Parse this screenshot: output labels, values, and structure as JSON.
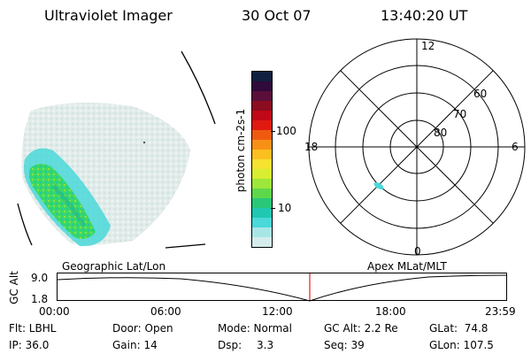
{
  "header": {
    "instrument": "Ultraviolet Imager",
    "date": "30 Oct 07",
    "time": "13:40:20 UT"
  },
  "colorbar": {
    "label": "photon cm-2s-1",
    "ticks": [
      "100",
      "10"
    ],
    "colors": [
      "#102040",
      "#300a3a",
      "#5a0e3a",
      "#8c0c20",
      "#c00818",
      "#e01a10",
      "#f05a10",
      "#f89018",
      "#fbbf20",
      "#f6e230",
      "#d8ee30",
      "#9fe63a",
      "#5ed84a",
      "#28c878",
      "#20c8b0",
      "#4ad8d8",
      "#a8e6e6",
      "#d4ecec"
    ]
  },
  "polar_plot": {
    "mlt_labels": [
      "12",
      "18",
      "6",
      "0"
    ],
    "lat_labels": [
      "60",
      "70",
      "80"
    ]
  },
  "timeline": {
    "left_label": "Geographic Lat/Lon",
    "right_label": "Apex MLat/MLT",
    "axis_title": "GC Alt",
    "y_ticks": [
      "9.0",
      "1.8"
    ],
    "time_ticks": [
      "00:00",
      "06:00",
      "12:00",
      "18:00",
      "23:59"
    ],
    "marker_color": "#e02020"
  },
  "info": {
    "flt": "Flt: LBHL",
    "ip": "IP: 36.0",
    "door": "Door: Open",
    "gain": "Gain: 14",
    "mode": "Mode: Normal",
    "dsp_label": "Dsp:",
    "dsp_value": "3.3",
    "gc_alt": "GC Alt: 2.2 Re",
    "seq": "Seq: 39",
    "glat": "GLat:  74.8",
    "glon": "GLon: 107.5"
  }
}
